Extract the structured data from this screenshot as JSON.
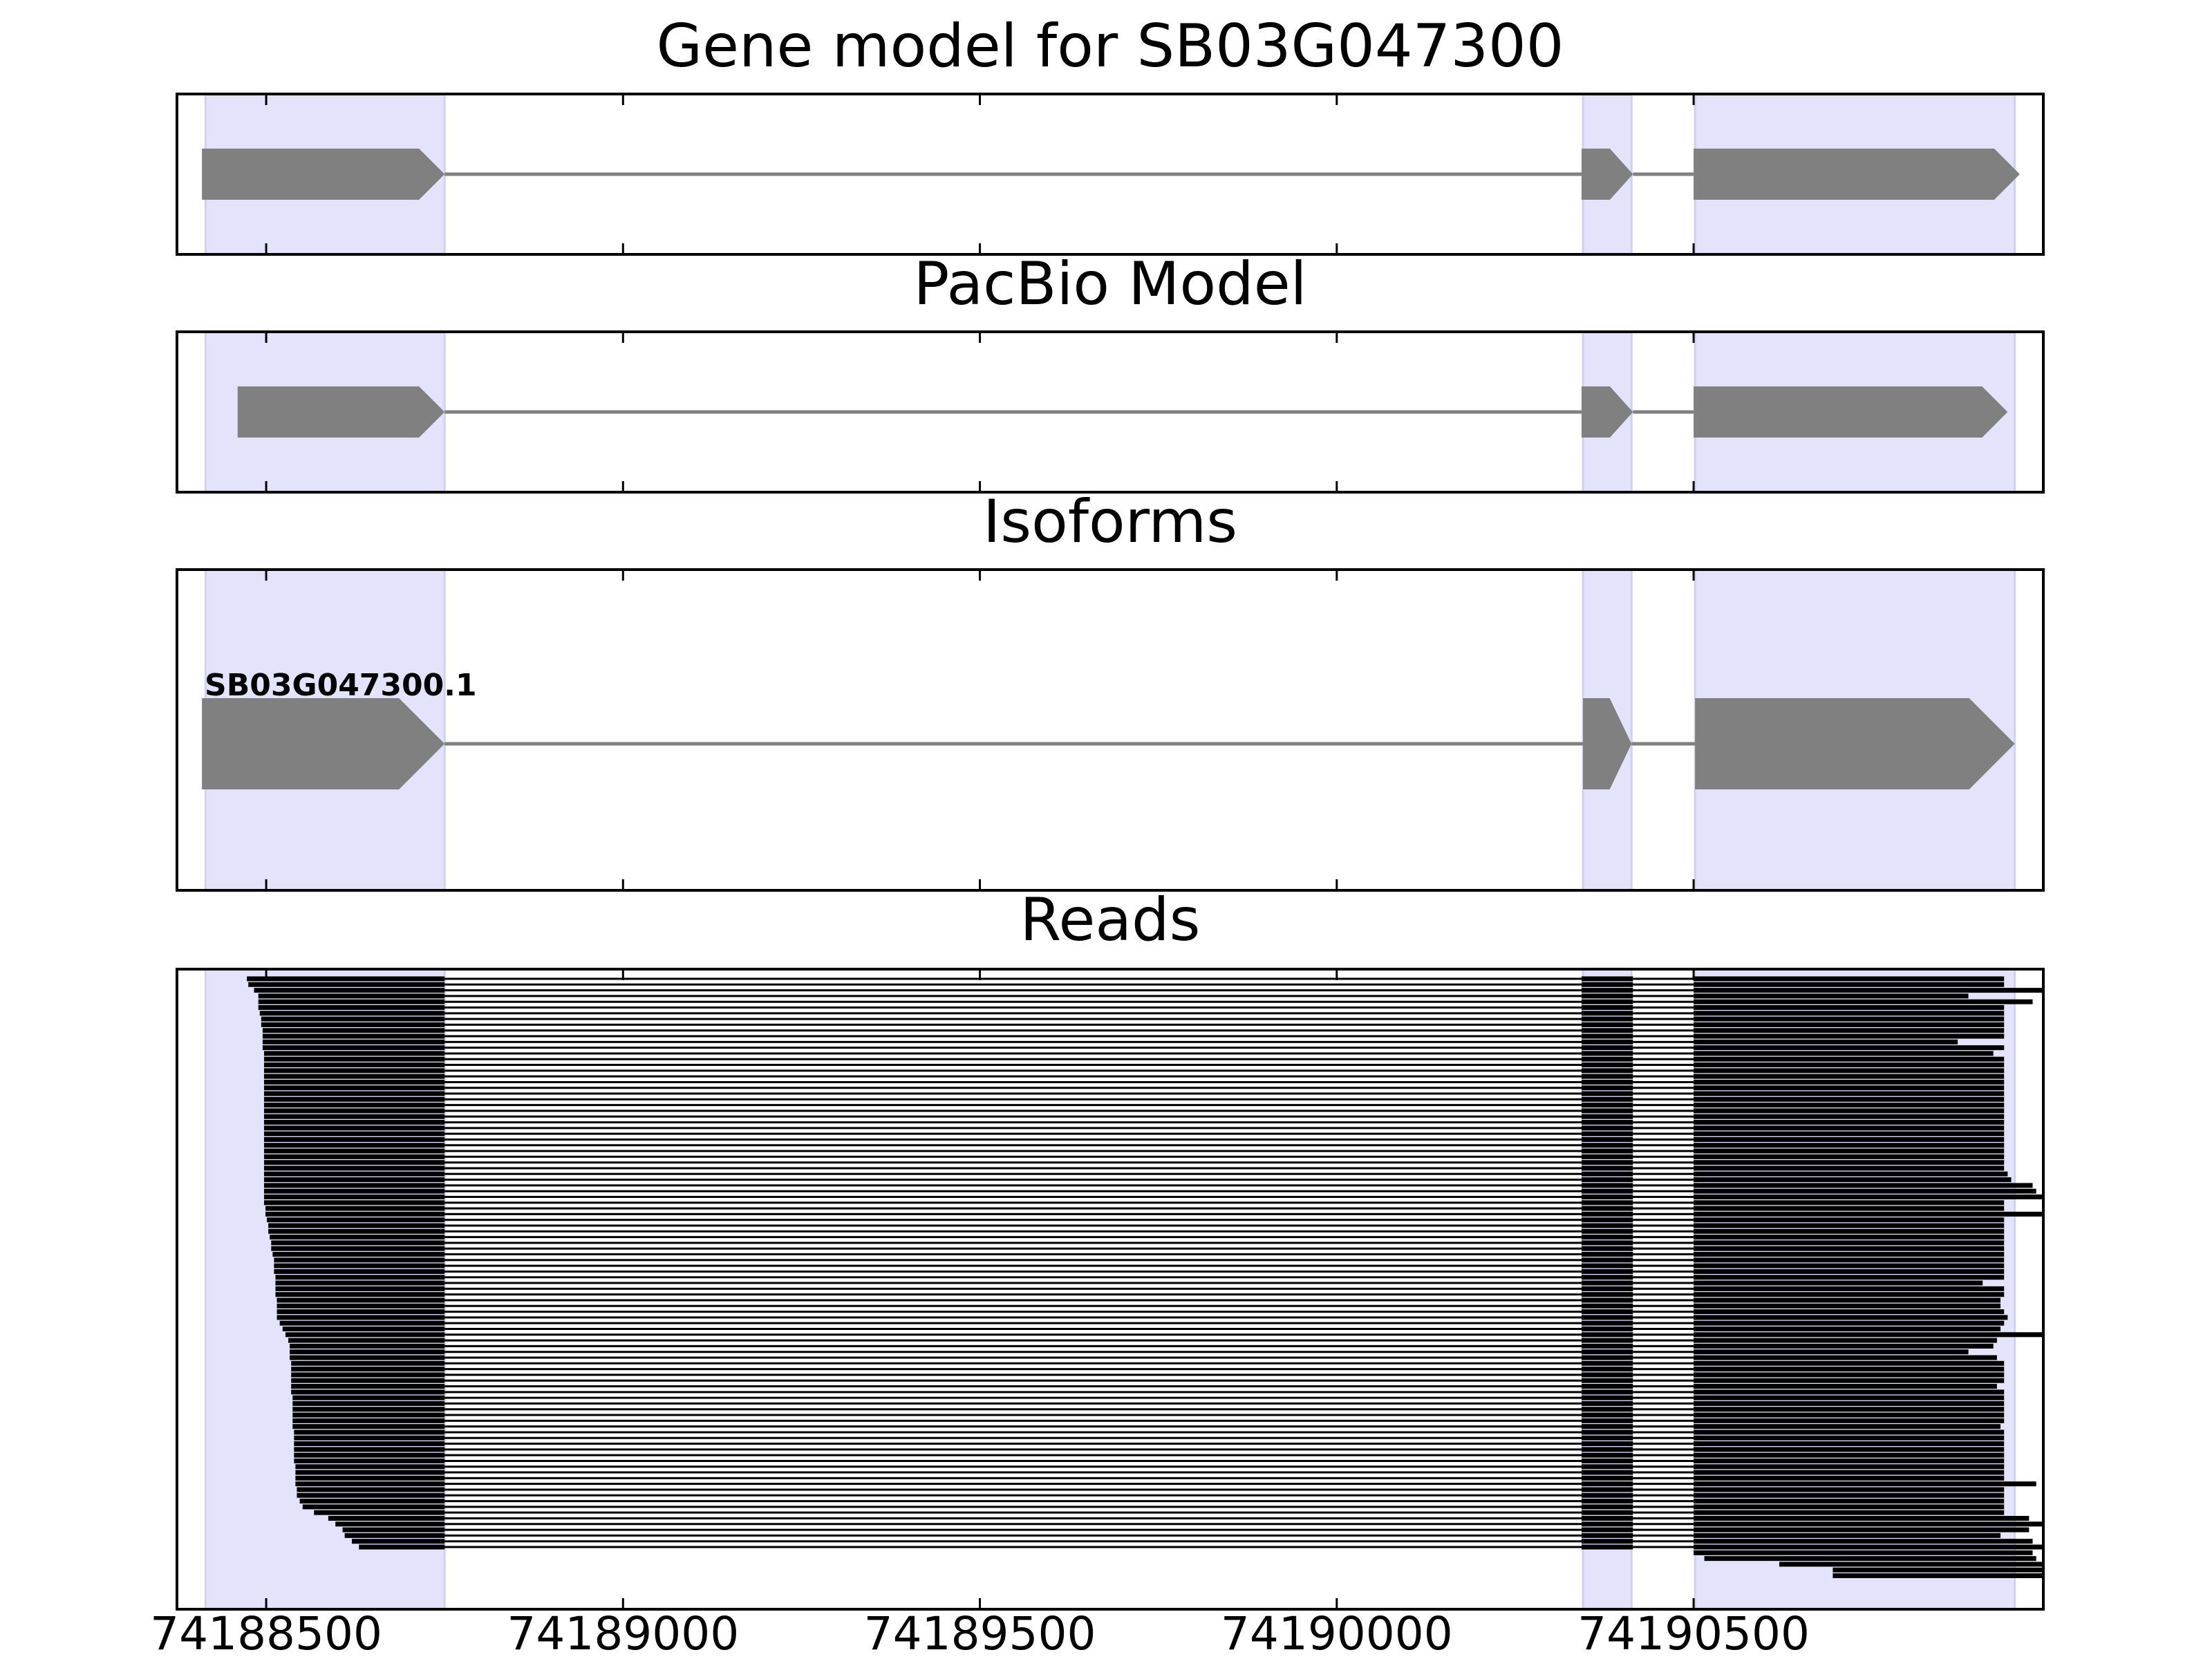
{
  "chart_data": {
    "type": "gene-track",
    "xlim": [
      74188375,
      74190990
    ],
    "x_ticks": [
      74188500,
      74189000,
      74189500,
      74190000,
      74190500
    ],
    "x_tick_labels": [
      "74188500",
      "74189000",
      "74189500",
      "74190000",
      "74190500"
    ],
    "highlight_color": "#e3e3fb",
    "feature_color": "#808080",
    "read_color": "#000000",
    "highlight_regions": [
      [
        74188415,
        74188750
      ],
      [
        74190345,
        74190413
      ],
      [
        74190502,
        74190950
      ]
    ],
    "panels": [
      {
        "title": "Gene model for SB03G047300",
        "exons": [
          [
            74188410,
            74188750
          ],
          [
            74190343,
            74190415
          ],
          [
            74190500,
            74190957
          ]
        ]
      },
      {
        "title": "PacBio Model",
        "exons": [
          [
            74188460,
            74188750
          ],
          [
            74190343,
            74190415
          ],
          [
            74190500,
            74190940
          ]
        ]
      },
      {
        "title": "Isoforms",
        "isoform_label": "SB03G047300.1",
        "exons": [
          [
            74188410,
            74188750
          ],
          [
            74190345,
            74190413
          ],
          [
            74190502,
            74190950
          ]
        ]
      },
      {
        "title": "Reads",
        "read_count": 100,
        "junctions": [
          [
            74188750,
            74190343
          ],
          [
            74190415,
            74190500
          ]
        ],
        "exon2": [
          74190343,
          74190415
        ],
        "read_starts": [
          74188473,
          74188475,
          74188483,
          74188489,
          74188489,
          74188489,
          74188491,
          74188493,
          74188493,
          74188495,
          74188495,
          74188495,
          74188495,
          74188497,
          74188497,
          74188497,
          74188497,
          74188497,
          74188497,
          74188497,
          74188497,
          74188497,
          74188497,
          74188497,
          74188497,
          74188497,
          74188497,
          74188497,
          74188497,
          74188497,
          74188497,
          74188497,
          74188497,
          74188497,
          74188497,
          74188497,
          74188497,
          74188497,
          74188497,
          74188497,
          74188499,
          74188499,
          74188501,
          74188503,
          74188503,
          74188505,
          74188507,
          74188507,
          74188509,
          74188511,
          74188511,
          74188511,
          74188513,
          74188513,
          74188513,
          74188513,
          74188515,
          74188515,
          74188515,
          74188515,
          74188519,
          74188523,
          74188527,
          74188531,
          74188533,
          74188533,
          74188533,
          74188535,
          74188535,
          74188535,
          74188535,
          74188535,
          74188535,
          74188537,
          74188537,
          74188537,
          74188537,
          74188537,
          74188537,
          74188539,
          74188539,
          74188539,
          74188539,
          74188539,
          74188539,
          74188541,
          74188541,
          74188541,
          74188541,
          74188543,
          74188543,
          74188547,
          74188551,
          74188567,
          74188587,
          74188597,
          74188607,
          74188610,
          74188620,
          74188630
        ],
        "read_ends": [
          74190935,
          74190935,
          74190990,
          74190885,
          74190975,
          74190935,
          74190935,
          74190935,
          74190935,
          74190935,
          74190935,
          74190870,
          74190935,
          74190920,
          74190935,
          74190935,
          74190935,
          74190935,
          74190935,
          74190935,
          74190935,
          74190935,
          74190935,
          74190935,
          74190935,
          74190935,
          74190935,
          74190935,
          74190935,
          74190935,
          74190935,
          74190935,
          74190935,
          74190935,
          74190940,
          74190945,
          74190975,
          74190980,
          74190990,
          74190935,
          74190935,
          74190990,
          74190935,
          74190935,
          74190935,
          74190935,
          74190935,
          74190935,
          74190935,
          74190935,
          74190935,
          74190935,
          74190935,
          74190905,
          74190935,
          74190935,
          74190930,
          74190930,
          74190935,
          74190940,
          74190935,
          74190930,
          74190990,
          74190925,
          74190920,
          74190885,
          74190925,
          74190935,
          74190935,
          74190935,
          74190935,
          74190925,
          74190935,
          74190935,
          74190935,
          74190935,
          74190935,
          74190935,
          74190930,
          74190935,
          74190935,
          74190935,
          74190935,
          74190935,
          74190935,
          74190935,
          74190935,
          74190935,
          74190980,
          74190935,
          74190935,
          74190935,
          74190935,
          74190935,
          74190970,
          74190990,
          74190970,
          74190930,
          74190975,
          74190990
        ],
        "tail_reads": [
          {
            "start": 74190500,
            "end": 74190975
          },
          {
            "start": 74190515,
            "end": 74190980
          },
          {
            "start": 74190620,
            "end": 74190990
          },
          {
            "start": 74190695,
            "end": 74190990
          },
          {
            "start": 74190695,
            "end": 74190990
          }
        ]
      }
    ]
  }
}
